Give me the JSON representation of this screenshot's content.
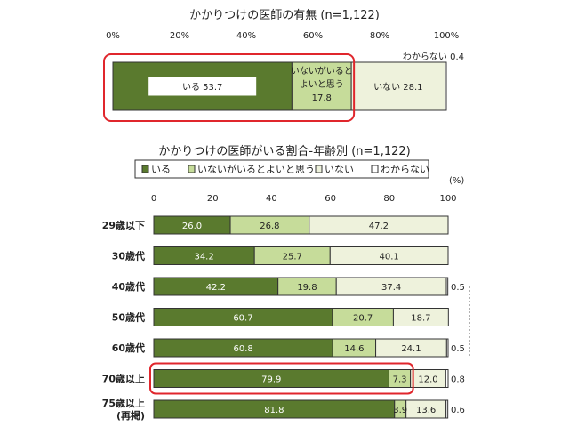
{
  "colors": {
    "iru": "#5a7a2e",
    "yoi": "#c6dc9a",
    "inai": "#eef2dc",
    "wakaranai": "#ffffff",
    "highlight": "#e0262c",
    "border": "#333333"
  },
  "chart_data": [
    {
      "type": "bar",
      "orientation": "horizontal",
      "stacked": true,
      "title": "かかりつけの医師の有無 (n=1,122)",
      "xlim": [
        0,
        100
      ],
      "x_ticks": [
        "0%",
        "20%",
        "40%",
        "60%",
        "80%",
        "100%"
      ],
      "segments": [
        {
          "name": "いる",
          "value": 53.7,
          "label": "いる 53.7",
          "color_key": "iru"
        },
        {
          "name": "いないがいるとよいと思う",
          "value": 17.8,
          "label_lines": [
            "いないがいると",
            "よいと思う",
            "17.8"
          ],
          "color_key": "yoi"
        },
        {
          "name": "いない",
          "value": 28.1,
          "label": "いない 28.1",
          "color_key": "inai"
        },
        {
          "name": "わからない",
          "value": 0.4,
          "label": "わからない 0.4",
          "color_key": "wakaranai"
        }
      ]
    },
    {
      "type": "bar",
      "orientation": "horizontal",
      "stacked": true,
      "title": "かかりつけの医師がいる割合-年齢別 (n=1,122)",
      "xlim": [
        0,
        100
      ],
      "x_ticks": [
        "0",
        "20",
        "40",
        "60",
        "80",
        "100"
      ],
      "unit_label": "(%)",
      "legend": [
        {
          "marker": "■",
          "name": "いる",
          "color_key": "iru"
        },
        {
          "marker": "■",
          "name": "いないがいるとよいと思う",
          "color_key": "yoi"
        },
        {
          "marker": "□",
          "name": "いない",
          "color_key": "inai"
        },
        {
          "marker": "□",
          "name": "わからない",
          "color_key": "wakaranai"
        }
      ],
      "categories": [
        {
          "lines": [
            "29歳以下"
          ]
        },
        {
          "lines": [
            "30歳代"
          ]
        },
        {
          "lines": [
            "40歳代"
          ]
        },
        {
          "lines": [
            "50歳代"
          ]
        },
        {
          "lines": [
            "60歳代"
          ]
        },
        {
          "lines": [
            "70歳以上"
          ]
        },
        {
          "lines": [
            "75歳以上",
            "(再掲)"
          ]
        }
      ],
      "series": [
        {
          "name": "いる",
          "color_key": "iru",
          "values": [
            26.0,
            34.2,
            42.2,
            60.7,
            60.8,
            79.9,
            81.8
          ],
          "labels": [
            "26.0",
            "34.2",
            "42.2",
            "60.7",
            "60.8",
            "79.9",
            "81.8"
          ]
        },
        {
          "name": "いないがいるとよいと思う",
          "color_key": "yoi",
          "values": [
            26.8,
            25.7,
            19.8,
            20.7,
            14.6,
            7.3,
            3.9
          ],
          "labels": [
            "26.8",
            "25.7",
            "19.8",
            "20.7",
            "14.6",
            "7.3",
            "3.9"
          ]
        },
        {
          "name": "いない",
          "color_key": "inai",
          "values": [
            47.2,
            40.1,
            37.4,
            18.7,
            24.1,
            12.0,
            13.6
          ],
          "labels": [
            "47.2",
            "40.1",
            "37.4",
            "18.7",
            "24.1",
            "12.0",
            "13.6"
          ]
        },
        {
          "name": "わからない",
          "color_key": "wakaranai",
          "values": [
            0,
            0,
            0.5,
            0,
            0.5,
            0.8,
            0.6
          ],
          "labels": [
            "",
            "",
            "0.5",
            "",
            "0.5",
            "0.8",
            "0.6"
          ]
        }
      ],
      "highlighted_category": "70歳以上"
    }
  ]
}
